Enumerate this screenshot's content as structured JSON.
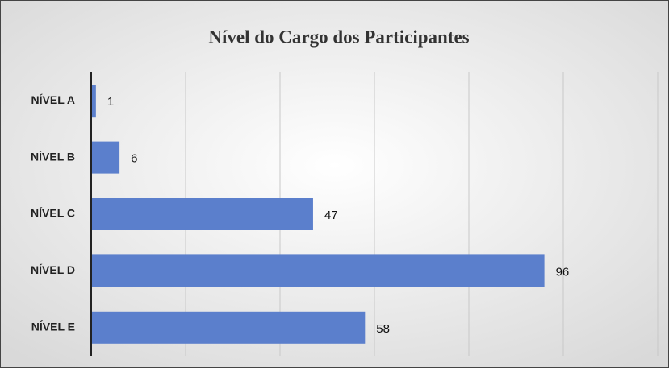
{
  "chart_data": {
    "type": "bar",
    "orientation": "horizontal",
    "title": "Nível do Cargo dos Participantes",
    "categories": [
      "NÍVEL A",
      "NÍVEL B",
      "NÍVEL C",
      "NÍVEL D",
      "NÍVEL E"
    ],
    "values": [
      1,
      6,
      47,
      96,
      58
    ],
    "color": "#5b7fcc",
    "xlim": [
      0,
      120
    ],
    "xticks": [
      0,
      20,
      40,
      60,
      80,
      100,
      120
    ],
    "grid": true
  }
}
